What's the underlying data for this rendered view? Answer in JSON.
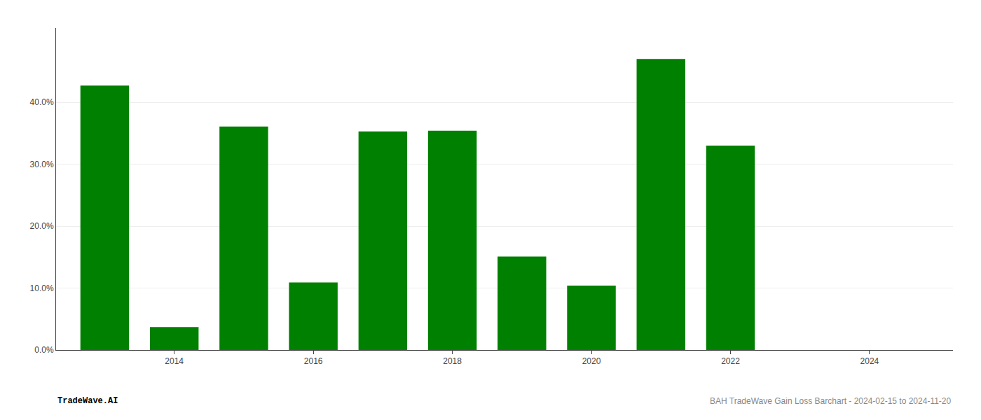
{
  "chart_data": {
    "type": "bar",
    "x": [
      2013,
      2014,
      2015,
      2016,
      2017,
      2018,
      2019,
      2020,
      2021,
      2022,
      2023
    ],
    "values": [
      0.427,
      0.037,
      0.361,
      0.109,
      0.353,
      0.354,
      0.151,
      0.104,
      0.47,
      0.33,
      0.0
    ],
    "color": "#008000",
    "xlim": [
      2012.3,
      2025.2
    ],
    "xticks": [
      2014,
      2016,
      2018,
      2020,
      2022,
      2024
    ],
    "ylim": [
      0,
      0.52
    ],
    "yticks": [
      {
        "value": 0.0,
        "label": "0.0%"
      },
      {
        "value": 0.1,
        "label": "10.0%"
      },
      {
        "value": 0.2,
        "label": "20.0%"
      },
      {
        "value": 0.3,
        "label": "30.0%"
      },
      {
        "value": 0.4,
        "label": "40.0%"
      }
    ],
    "grid": true,
    "annotations": [
      "TradeWave.AI",
      "BAH TradeWave Gain Loss Barchart - 2024-02-15 to 2024-11-20"
    ]
  }
}
